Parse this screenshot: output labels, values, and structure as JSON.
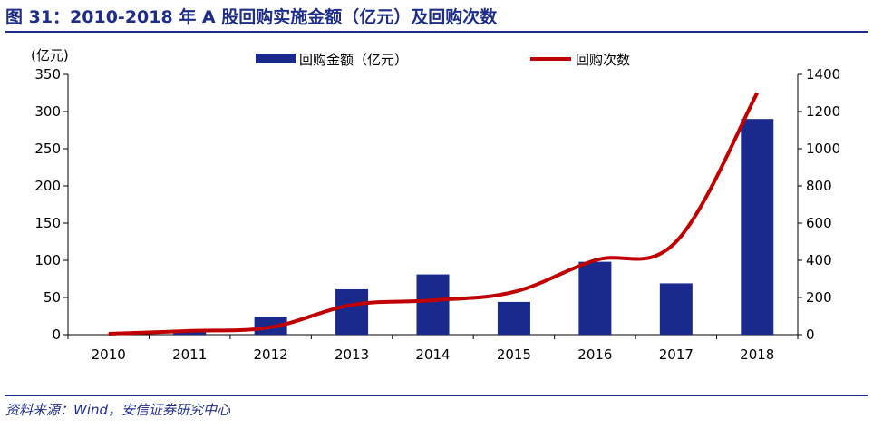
{
  "figure": {
    "title": "图 31：2010-2018 年 A 股回购实施金额（亿元）及回购次数",
    "source": "资料来源：Wind，安信证券研究中心"
  },
  "chart_data": {
    "type": "bar",
    "categories": [
      "2010",
      "2011",
      "2012",
      "2013",
      "2014",
      "2015",
      "2016",
      "2017",
      "2018"
    ],
    "series": [
      {
        "name": "回购金额（亿元）",
        "type": "bar",
        "axis": "left",
        "color": "#1a2a8c",
        "values": [
          0,
          4,
          24,
          61,
          81,
          44,
          98,
          69,
          290
        ]
      },
      {
        "name": "回购次数",
        "type": "line",
        "axis": "right",
        "color": "#c00000",
        "values": [
          5,
          20,
          40,
          160,
          185,
          230,
          400,
          500,
          1300
        ]
      }
    ],
    "y_left": {
      "unit_label": "(亿元)",
      "ylim": [
        0,
        350
      ],
      "ticks": [
        0,
        50,
        100,
        150,
        200,
        250,
        300,
        350
      ]
    },
    "y_right": {
      "ylim": [
        0,
        1400
      ],
      "ticks": [
        0,
        200,
        400,
        600,
        800,
        1000,
        1200,
        1400
      ]
    },
    "legend_placement": "top-center",
    "grid": false
  }
}
